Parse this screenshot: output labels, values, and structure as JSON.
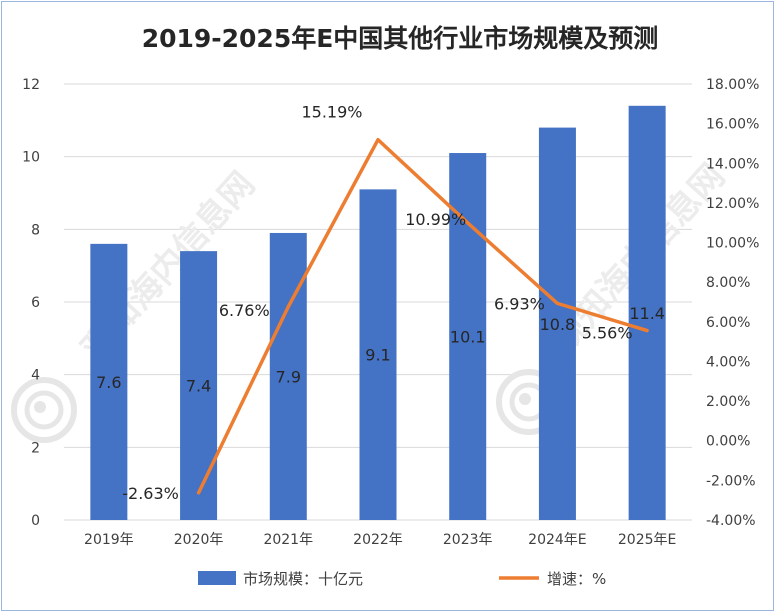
{
  "chart_data": {
    "type": "bar",
    "title": "2019-2025年E中国其他行业市场规模及预测",
    "categories": [
      "2019年",
      "2020年",
      "2021年",
      "2022年",
      "2023年",
      "2024年E",
      "2025年E"
    ],
    "series": [
      {
        "name": "市场规模：十亿元",
        "type": "bar",
        "axis": "left",
        "values": [
          7.6,
          7.4,
          7.9,
          9.1,
          10.1,
          10.8,
          11.4
        ],
        "labels": [
          "7.6",
          "7.4",
          "7.9",
          "9.1",
          "10.1",
          "10.8",
          "11.4"
        ],
        "color": "#4472c4"
      },
      {
        "name": "增速：%",
        "type": "line",
        "axis": "right",
        "values": [
          null,
          -2.63,
          6.76,
          15.19,
          10.99,
          6.93,
          5.56
        ],
        "labels": [
          "",
          "-2.63%",
          "6.76%",
          "15.19%",
          "10.99%",
          "6.93%",
          "5.56%"
        ],
        "color": "#ed7d31"
      }
    ],
    "ylim": [
      0,
      12
    ],
    "y_ticks": [
      "0",
      "2",
      "4",
      "6",
      "8",
      "10",
      "12"
    ],
    "y2lim": [
      -4,
      18
    ],
    "y2_ticks": [
      "-4.00%",
      "-2.00%",
      "0.00%",
      "2.00%",
      "4.00%",
      "6.00%",
      "8.00%",
      "10.00%",
      "12.00%",
      "14.00%",
      "16.00%",
      "18.00%"
    ],
    "grid": true,
    "legend": "bottom"
  },
  "watermark": "观知海内信息网"
}
